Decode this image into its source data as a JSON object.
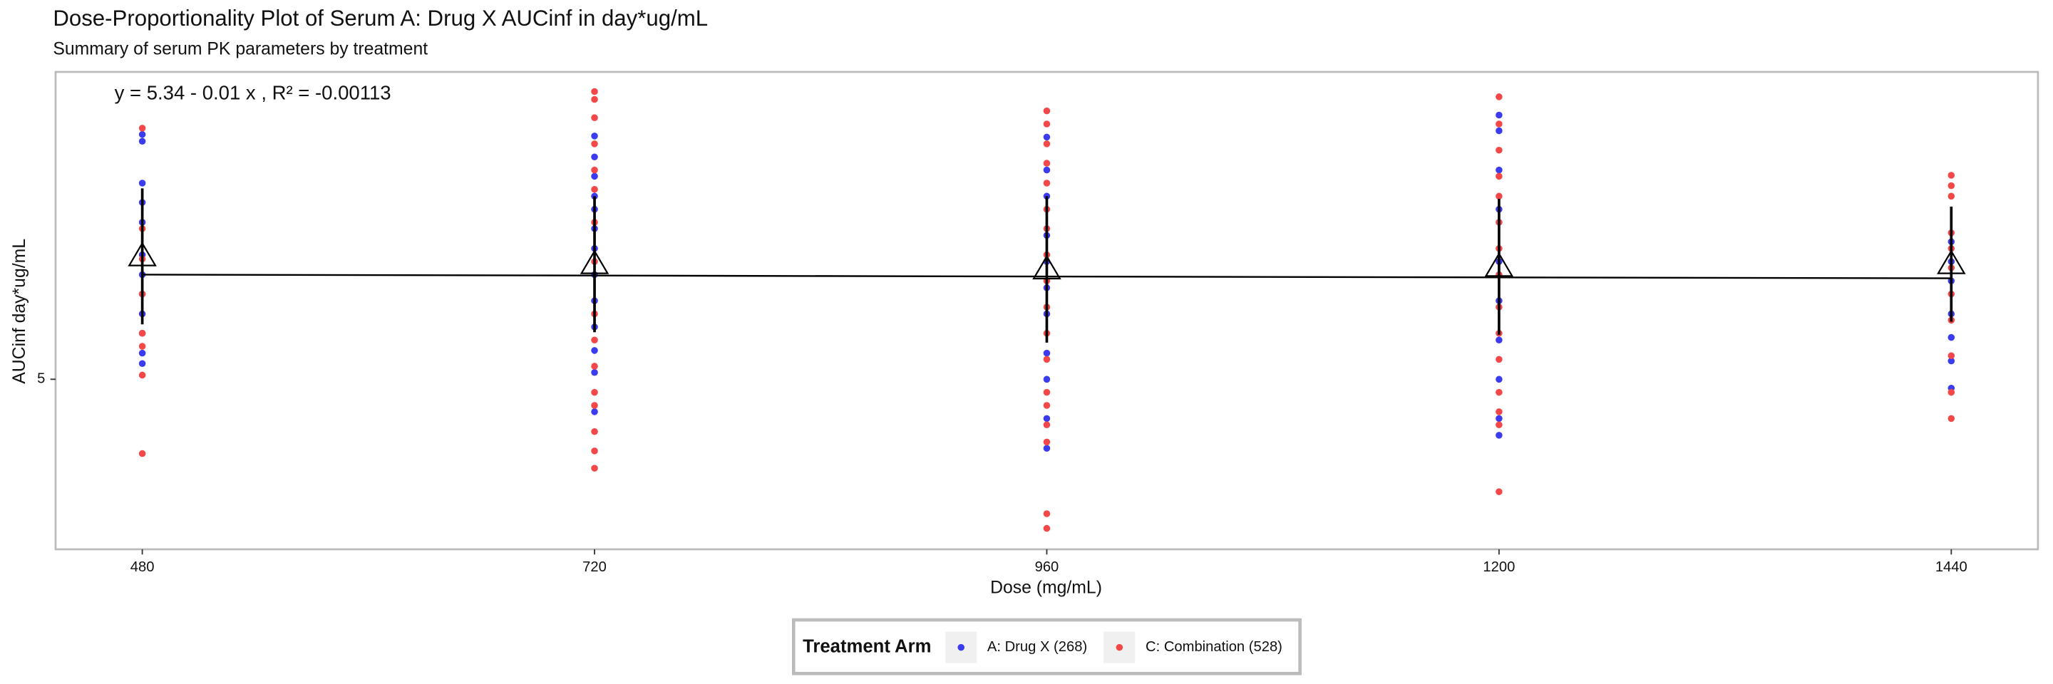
{
  "chart_data": {
    "type": "scatter",
    "title": "Dose-Proportionality Plot of Serum A: Drug X AUCinf in day*ug/mL",
    "subtitle": "Summary of serum PK parameters by treatment",
    "annotation": "y = 5.34 - 0.01 x , R² = -0.00113",
    "x_label": "Dose (mg/mL)",
    "y_label": "AUCinf day*ug/mL",
    "xlim": [
      434,
      1486
    ],
    "xticks": [
      480,
      720,
      960,
      1200,
      1440
    ],
    "ylim": [
      1.75,
      10.875
    ],
    "yticks": [
      5
    ],
    "legend_title": "Treatment Arm",
    "legend": "bottom",
    "series": [
      {
        "name": "A: Drug X (268)",
        "color": "#3b3bf0",
        "x": [
          480,
          480,
          480,
          480,
          480,
          480,
          480,
          480,
          480,
          480,
          480,
          480,
          720,
          720,
          720,
          720,
          720,
          720,
          720,
          720,
          720,
          720,
          720,
          720,
          720,
          960,
          960,
          960,
          960,
          960,
          960,
          960,
          960,
          960,
          960,
          960,
          1200,
          1200,
          1200,
          1200,
          1200,
          1200,
          1200,
          1200,
          1200,
          1200,
          1440,
          1440,
          1440,
          1440,
          1440,
          1440,
          1440
        ],
        "values": [
          9.68,
          9.55,
          8.75,
          8.38,
          8.0,
          7.38,
          7.0,
          6.63,
          6.25,
          5.88,
          5.5,
          5.3,
          9.65,
          9.25,
          8.88,
          8.5,
          8.25,
          7.88,
          7.5,
          7.0,
          6.5,
          6.0,
          5.55,
          5.13,
          4.38,
          9.63,
          9.0,
          8.5,
          7.75,
          7.25,
          6.75,
          6.25,
          5.5,
          5.0,
          4.25,
          3.68,
          10.05,
          9.75,
          9.0,
          8.25,
          7.25,
          6.5,
          5.75,
          5.0,
          4.25,
          3.93,
          7.63,
          7.25,
          6.88,
          6.25,
          5.8,
          5.35,
          4.83
        ]
      },
      {
        "name": "C: Combination (528)",
        "color": "#f44848",
        "x": [
          480,
          480,
          480,
          480,
          480,
          480,
          480,
          480,
          720,
          720,
          720,
          720,
          720,
          720,
          720,
          720,
          720,
          720,
          720,
          720,
          720,
          720,
          720,
          720,
          960,
          960,
          960,
          960,
          960,
          960,
          960,
          960,
          960,
          960,
          960,
          960,
          960,
          960,
          960,
          960,
          960,
          960,
          1200,
          1200,
          1200,
          1200,
          1200,
          1200,
          1200,
          1200,
          1200,
          1200,
          1200,
          1200,
          1200,
          1200,
          1200,
          1440,
          1440,
          1440,
          1440,
          1440,
          1440,
          1440,
          1440,
          1440,
          1440,
          1440
        ],
        "values": [
          9.8,
          7.88,
          7.3,
          6.63,
          5.88,
          5.63,
          5.08,
          3.58,
          10.5,
          10.35,
          10.0,
          9.5,
          9.0,
          8.63,
          8.0,
          7.25,
          6.25,
          5.75,
          5.25,
          4.75,
          4.5,
          4.0,
          3.63,
          3.3,
          10.13,
          9.88,
          9.5,
          9.13,
          8.75,
          8.25,
          7.88,
          7.38,
          6.88,
          6.38,
          5.88,
          5.38,
          4.75,
          4.5,
          4.13,
          3.8,
          2.43,
          2.15,
          10.4,
          9.88,
          9.38,
          8.88,
          8.5,
          8.0,
          7.5,
          7.0,
          6.38,
          5.88,
          5.38,
          4.75,
          4.38,
          4.13,
          2.85,
          8.9,
          8.7,
          8.5,
          7.8,
          7.5,
          7.13,
          6.63,
          6.13,
          5.45,
          4.75,
          4.25
        ]
      }
    ],
    "summary": {
      "x": [
        480,
        720,
        960,
        1200,
        1440
      ],
      "values": [
        7.35,
        7.2,
        7.1,
        7.15,
        7.2
      ],
      "errors": [
        1.3,
        1.3,
        1.4,
        1.3,
        1.1
      ]
    },
    "fit": {
      "x": [
        480,
        1440
      ],
      "values": [
        7.0,
        6.93
      ]
    }
  }
}
